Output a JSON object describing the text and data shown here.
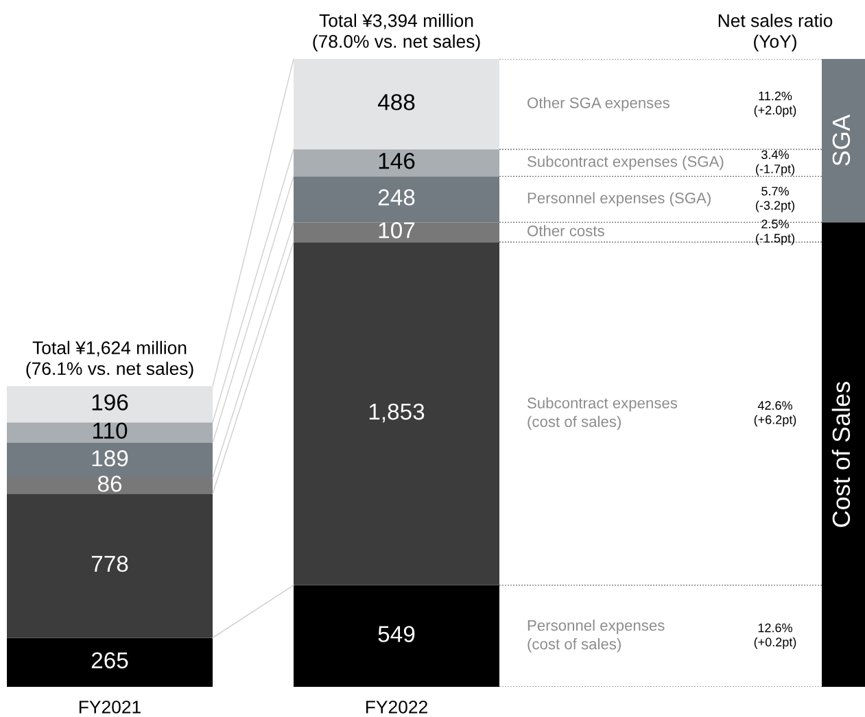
{
  "chart_data": {
    "type": "bar",
    "stacked": true,
    "data_labels": true,
    "categories": [
      "FY2021",
      "FY2022"
    ],
    "series": [
      {
        "name": "Personnel expenses\n(cost of sales)",
        "color": "#000000",
        "values": [
          265,
          549
        ]
      },
      {
        "name": "Subcontract expenses\n(cost of sales)",
        "color": "#3c3c3c",
        "values": [
          778,
          1853
        ],
        "value_labels": [
          "778",
          "1,853"
        ]
      },
      {
        "name": "Other costs",
        "color": "#787878",
        "values": [
          86,
          107
        ]
      },
      {
        "name": "Personnel expenses (SGA)",
        "color": "#737b82",
        "values": [
          189,
          248
        ]
      },
      {
        "name": "Subcontract expenses (SGA)",
        "color": "#a9aeb2",
        "values": [
          110,
          146
        ]
      },
      {
        "name": "Other SGA expenses",
        "color": "#e3e4e6",
        "values": [
          196,
          488
        ]
      }
    ],
    "totals": [
      "Total ¥1,624 million\n(76.1% vs. net sales)",
      "Total ¥3,394 million\n(78.0% vs. net sales)"
    ],
    "annotations": [
      "Net sales ratio\n(YoY)",
      "Cost of Sales",
      "SGA",
      "12.6%\n(+0.2pt)",
      "42.6%\n(+6.2pt)",
      "2.5%\n(-1.5pt)",
      "5.7%\n(-3.2pt)",
      "3.4%\n(-1.7pt)",
      "11.2%\n(+2.0pt)"
    ],
    "legend": false
  }
}
